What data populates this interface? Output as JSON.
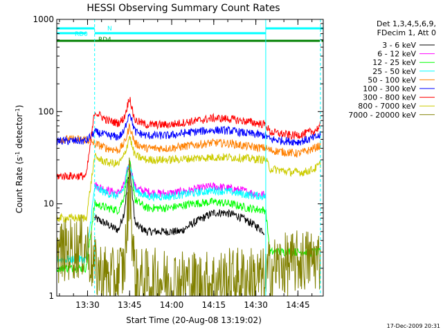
{
  "chart_data": {
    "type": "line",
    "title": "HESSI Observing Summary Count Rates",
    "xlabel": "Start Time (20-Aug-08 13:19:02)",
    "ylabel": "Count Rate (s",
    "ylabel_sup1": "-1",
    "ylabel_mid": " detector",
    "ylabel_sup2": "-1",
    "ylabel_end": ")",
    "x_unit": "minutes since 13:19:02",
    "xlim": [
      0,
      95
    ],
    "ylim": [
      1,
      1000
    ],
    "y_scale": "log",
    "x_ticks": [
      {
        "label": "13:30",
        "value": 10.97
      },
      {
        "label": "13:45",
        "value": 25.97
      },
      {
        "label": "14:00",
        "value": 40.97
      },
      {
        "label": "14:15",
        "value": 55.97
      },
      {
        "label": "14:30",
        "value": 70.97
      },
      {
        "label": "14:45",
        "value": 85.97
      }
    ],
    "y_ticks": [
      {
        "label": "1",
        "value": 1
      },
      {
        "label": "10",
        "value": 10
      },
      {
        "label": "100",
        "value": 100
      },
      {
        "label": "1000",
        "value": 1000
      }
    ],
    "legend_header": [
      "Det 1,3,4,5,6,9,",
      "FDecim 1, Att 0"
    ],
    "legend_placement": "right",
    "timestamp": "17-Dec-2009 20:31",
    "flags": [
      {
        "label": "N",
        "color": "#00ffff",
        "segments": [
          [
            0,
            13.5
          ],
          [
            74.5,
            95
          ]
        ]
      },
      {
        "label": "RD0",
        "color": "#00ffff",
        "segments": [
          [
            0,
            10.5
          ],
          [
            13.5,
            74.5
          ]
        ]
      },
      {
        "label": "RD4",
        "color": "#008000",
        "segments": [
          [
            0,
            13.5
          ],
          [
            13.5,
            93.8
          ],
          [
            94.4,
            95
          ]
        ]
      }
    ],
    "vlines": [
      {
        "x": 13.5,
        "style": "dashed",
        "color": "#00ffff"
      },
      {
        "x": 74.5,
        "style": "solid",
        "color": "#00ffff"
      },
      {
        "x": 94,
        "style": "dashed",
        "color": "#00ffff"
      }
    ],
    "series": [
      {
        "name": "3 - 6 keV",
        "color": "#000000",
        "points": [
          [
            13.5,
            7
          ],
          [
            18,
            6
          ],
          [
            20,
            5.5
          ],
          [
            22,
            5.2
          ],
          [
            24,
            8
          ],
          [
            25,
            14
          ],
          [
            26,
            25
          ],
          [
            27,
            12
          ],
          [
            28,
            6
          ],
          [
            32,
            5
          ],
          [
            40,
            5
          ],
          [
            44,
            5
          ],
          [
            48,
            6
          ],
          [
            52,
            7
          ],
          [
            56,
            8
          ],
          [
            60,
            8
          ],
          [
            64,
            7.5
          ],
          [
            68,
            6.5
          ],
          [
            72,
            5.5
          ],
          [
            74,
            5
          ]
        ]
      },
      {
        "name": "6 - 12 keV",
        "color": "#ff00ff",
        "points": [
          [
            13.5,
            16
          ],
          [
            18,
            14
          ],
          [
            22,
            13
          ],
          [
            24,
            16
          ],
          [
            25,
            22
          ],
          [
            26,
            28
          ],
          [
            27,
            20
          ],
          [
            28,
            15
          ],
          [
            30,
            14
          ],
          [
            36,
            13
          ],
          [
            40,
            13
          ],
          [
            48,
            14
          ],
          [
            52,
            15
          ],
          [
            56,
            15.5
          ],
          [
            60,
            15
          ],
          [
            66,
            14
          ],
          [
            70,
            13
          ],
          [
            74.5,
            12.5
          ]
        ]
      },
      {
        "name": "12 - 25 keV",
        "color": "#00ff00",
        "points": [
          [
            0,
            2
          ],
          [
            10.5,
            2
          ],
          [
            13.5,
            10
          ],
          [
            18,
            9
          ],
          [
            22,
            8.5
          ],
          [
            24,
            12
          ],
          [
            25,
            20
          ],
          [
            26,
            28
          ],
          [
            27,
            18
          ],
          [
            28,
            11
          ],
          [
            32,
            9
          ],
          [
            40,
            9
          ],
          [
            48,
            10
          ],
          [
            56,
            10.5
          ],
          [
            62,
            10
          ],
          [
            68,
            9
          ],
          [
            74.5,
            8.5
          ],
          [
            76,
            3
          ],
          [
            90,
            3
          ],
          [
            94,
            3
          ]
        ]
      },
      {
        "name": "25 - 50 keV",
        "color": "#00ffff",
        "points": [
          [
            0,
            2.5
          ],
          [
            10.5,
            2.5
          ],
          [
            13.5,
            15
          ],
          [
            18,
            13
          ],
          [
            22,
            12
          ],
          [
            24,
            15
          ],
          [
            25,
            22
          ],
          [
            26,
            28
          ],
          [
            27,
            20
          ],
          [
            28,
            14
          ],
          [
            32,
            12
          ],
          [
            40,
            12
          ],
          [
            48,
            13
          ],
          [
            56,
            14
          ],
          [
            62,
            13.5
          ],
          [
            68,
            12.5
          ],
          [
            74.5,
            12
          ]
        ]
      },
      {
        "name": "50 - 100 keV",
        "color": "#ff8000",
        "points": [
          [
            0,
            50
          ],
          [
            10.5,
            50
          ],
          [
            13.5,
            45
          ],
          [
            18,
            40
          ],
          [
            22,
            38
          ],
          [
            24,
            45
          ],
          [
            25,
            55
          ],
          [
            26,
            70
          ],
          [
            27,
            55
          ],
          [
            28,
            45
          ],
          [
            32,
            40
          ],
          [
            40,
            40
          ],
          [
            48,
            43
          ],
          [
            56,
            46
          ],
          [
            62,
            45
          ],
          [
            68,
            42
          ],
          [
            74.5,
            40
          ],
          [
            76,
            38
          ],
          [
            86,
            35
          ],
          [
            90,
            38
          ],
          [
            94,
            43
          ]
        ]
      },
      {
        "name": "100 - 300 keV",
        "color": "#0000ff",
        "points": [
          [
            0,
            48
          ],
          [
            10.5,
            48
          ],
          [
            13.5,
            60
          ],
          [
            18,
            55
          ],
          [
            22,
            53
          ],
          [
            24,
            60
          ],
          [
            25,
            80
          ],
          [
            26,
            100
          ],
          [
            27,
            75
          ],
          [
            28,
            60
          ],
          [
            32,
            55
          ],
          [
            40,
            55
          ],
          [
            48,
            60
          ],
          [
            56,
            63
          ],
          [
            62,
            62
          ],
          [
            68,
            58
          ],
          [
            74.5,
            55
          ],
          [
            76,
            50
          ],
          [
            86,
            47
          ],
          [
            90,
            50
          ],
          [
            94,
            55
          ]
        ]
      },
      {
        "name": "300 - 800 keV",
        "color": "#ff0000",
        "points": [
          [
            0,
            20
          ],
          [
            10.5,
            20
          ],
          [
            13.5,
            100
          ],
          [
            18,
            80
          ],
          [
            22,
            75
          ],
          [
            24,
            85
          ],
          [
            25,
            110
          ],
          [
            26,
            145
          ],
          [
            27,
            100
          ],
          [
            28,
            80
          ],
          [
            32,
            72
          ],
          [
            40,
            72
          ],
          [
            48,
            78
          ],
          [
            56,
            85
          ],
          [
            62,
            83
          ],
          [
            68,
            78
          ],
          [
            74.5,
            72
          ],
          [
            76,
            60
          ],
          [
            84,
            55
          ],
          [
            88,
            57
          ],
          [
            92,
            62
          ],
          [
            94,
            70
          ]
        ]
      },
      {
        "name": "800 - 7000 keV",
        "color": "#cccc00",
        "points": [
          [
            0,
            7
          ],
          [
            10.5,
            7
          ],
          [
            13.5,
            32
          ],
          [
            18,
            28
          ],
          [
            22,
            27
          ],
          [
            24,
            33
          ],
          [
            25,
            42
          ],
          [
            26,
            55
          ],
          [
            27,
            40
          ],
          [
            28,
            33
          ],
          [
            32,
            30
          ],
          [
            40,
            30
          ],
          [
            48,
            31
          ],
          [
            56,
            32
          ],
          [
            62,
            32
          ],
          [
            68,
            31
          ],
          [
            74.5,
            30
          ],
          [
            76,
            24
          ],
          [
            84,
            22
          ],
          [
            88,
            22
          ],
          [
            92,
            24
          ],
          [
            94,
            27
          ]
        ]
      },
      {
        "name": "7000 - 20000 keV",
        "color": "#808000",
        "points": [
          [
            0,
            3
          ],
          [
            10.5,
            3.5
          ],
          [
            13.5,
            2
          ],
          [
            20,
            1.5
          ],
          [
            24,
            2
          ],
          [
            25,
            5
          ],
          [
            26,
            20
          ],
          [
            27,
            4
          ],
          [
            28,
            1.5
          ],
          [
            36,
            1.5
          ],
          [
            44,
            1.5
          ],
          [
            52,
            1.4
          ],
          [
            60,
            1.5
          ],
          [
            68,
            1.6
          ],
          [
            74.5,
            1.5
          ],
          [
            76,
            2
          ],
          [
            90,
            2.5
          ],
          [
            94,
            2.5
          ]
        ]
      }
    ]
  }
}
